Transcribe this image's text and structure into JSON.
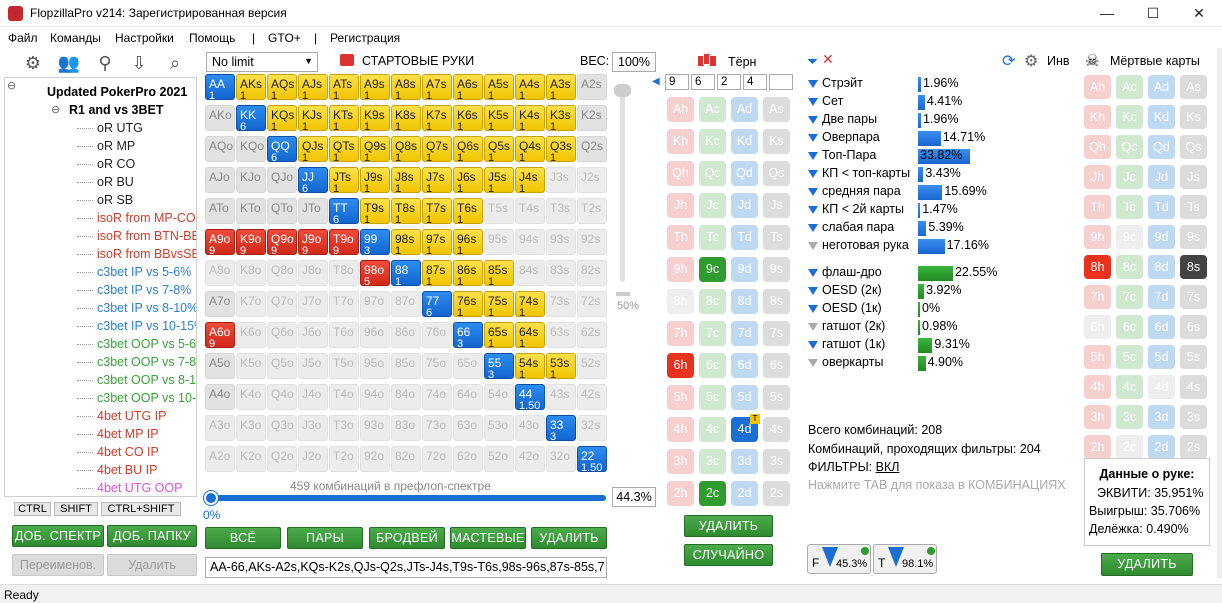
{
  "window": {
    "title": "FlopzillaPro v214: Зарегистрированная версия",
    "min": "—",
    "max": "☐",
    "close": "✕"
  },
  "menu": [
    "Файл",
    "Команды",
    "Настройки",
    "Помощь",
    "|",
    "GTO+",
    "|",
    "Регистрация"
  ],
  "tree": {
    "root": "Updated PokerPro 2021",
    "group": "R1 and vs 3BET",
    "items": [
      {
        "label": "oR UTG",
        "color": "#222"
      },
      {
        "label": "oR MP",
        "color": "#222"
      },
      {
        "label": "oR CO",
        "color": "#222"
      },
      {
        "label": "oR BU",
        "color": "#222"
      },
      {
        "label": "oR SB",
        "color": "#222"
      },
      {
        "label": "isoR from MP-CO",
        "color": "#d63a2a"
      },
      {
        "label": "isoR from BTN-BB",
        "color": "#d63a2a"
      },
      {
        "label": "isoR from BBvsSB",
        "color": "#d63a2a"
      },
      {
        "label": "c3bet IP vs 5-6%",
        "color": "#2a7fd6"
      },
      {
        "label": "c3bet IP vs 7-8%",
        "color": "#2a7fd6"
      },
      {
        "label": "c3bet IP vs 8-10%",
        "color": "#2a7fd6"
      },
      {
        "label": "c3bet IP vs 10-15%",
        "color": "#2a7fd6"
      },
      {
        "label": "c3bet OOP vs 5-6%",
        "color": "#3aa33a"
      },
      {
        "label": "c3bet OOP vs 7-8%",
        "color": "#3aa33a"
      },
      {
        "label": "c3bet OOP vs 8-10%",
        "color": "#3aa33a"
      },
      {
        "label": "c3bet OOP vs 10-15%",
        "color": "#3aa33a"
      },
      {
        "label": "4bet UTG IP",
        "color": "#d63a2a"
      },
      {
        "label": "4bet MP IP",
        "color": "#d63a2a"
      },
      {
        "label": "4bet CO IP",
        "color": "#d63a2a"
      },
      {
        "label": "4bet BU IP",
        "color": "#d63a2a"
      },
      {
        "label": "4bet UTG OOP",
        "color": "#e050e0"
      }
    ]
  },
  "keys": [
    "CTRL",
    "SHIFT",
    "CTRL+SHIFT"
  ],
  "left_buttons": {
    "add_range": "ДОБ. СПЕКТР",
    "add_folder": "ДОБ. ПАПКУ",
    "rename": "Переименов.",
    "delete": "Удалить"
  },
  "range": {
    "limit": "No limit",
    "title": "СТАРТОВЫЕ РУКИ",
    "weight_label": "ВЕС:",
    "weight": "100%",
    "slider_pct": "50%",
    "combos_text": "459 комбинаций в префлоп-спектре",
    "bottom_pct": "44.3%",
    "bottom_zero": "0%",
    "range_string": "AA-66,AKs-A2s,KQs-K2s,QJs-Q2s,JTs-J4s,T9s-T6s,98s-96s,87s-85s,7",
    "buttons": [
      "ВСЁ",
      "ПАРЫ",
      "БРОДВЕЙ",
      "МАСТЕВЫЕ",
      "УДАЛИТЬ"
    ]
  },
  "ranks": [
    "A",
    "K",
    "Q",
    "J",
    "T",
    "9",
    "8",
    "7",
    "6",
    "5",
    "4",
    "3",
    "2"
  ],
  "grid_rows": [
    "B1Y1Y1Y1Y1Y1Y1Y1Y1Y1Y1Y1G0",
    "GxB6Y1Y1Y1Y1Y1Y1Y1Y1Y1Y1G0",
    "GxGxB6Y1Y1Y1Y1Y1Y1Y1Y1Y1G0",
    "GxGxGxB6Y1Y1Y1Y1Y1Y1Y1E0E0",
    "GxGxGxGxB6Y1Y1Y1Y1E0E0E0E0",
    "R9R9R9R9R9B3Y1Y1Y1E0E0E0E0",
    "E0E0E0E0E0R5B1Y1Y1Y1E0E0E0",
    "GxE0E0E0E0E0E0B6Y1Y1Y1E0E0",
    "R9E0E0E0E0E0E0E0B3Y1Y1E0E0",
    "GxE0E0E0E0E0E0E0E0B3Y1Y1E0",
    "GxE0E0E0E0E0E0E0E0E0BxE0E0",
    "E0E0E0E0E0E0E0E0E0E0E0B3E0",
    "E0E0E0E0E0E0E0E0E0E0E0E0Bx"
  ],
  "weights_special": {
    "44": "1.50",
    "22": "1.50"
  },
  "board": {
    "title": "Тёрн",
    "inputs": [
      "9",
      "6",
      "2",
      "4",
      ""
    ],
    "delete": "УДАЛИТЬ",
    "random": "СЛУЧАЙНО"
  },
  "dead": {
    "title": "Мёртвые карты",
    "delete": "УДАЛИТЬ"
  },
  "stats_header": {
    "inv": "Инв"
  },
  "stats": [
    {
      "label": "Стрэйт",
      "pct": "1.96%",
      "v": 1.96,
      "c": "b"
    },
    {
      "label": "Сет",
      "pct": "4.41%",
      "v": 4.41,
      "c": "b"
    },
    {
      "label": "Две пары",
      "pct": "1.96%",
      "v": 1.96,
      "c": "b"
    },
    {
      "label": "Оверпара",
      "pct": "14.71%",
      "v": 14.71,
      "c": "b"
    },
    {
      "label": "Топ-Пара",
      "pct": "33.82%",
      "v": 33.82,
      "c": "b"
    },
    {
      "label": "КП < топ-карты",
      "pct": "3.43%",
      "v": 3.43,
      "c": "b"
    },
    {
      "label": "средняя пара",
      "pct": "15.69%",
      "v": 15.69,
      "c": "b"
    },
    {
      "label": "КП < 2й карты",
      "pct": "1.47%",
      "v": 1.47,
      "c": "b"
    },
    {
      "label": "слабая пара",
      "pct": "5.39%",
      "v": 5.39,
      "c": "b"
    },
    {
      "label": "неготовая рука",
      "pct": "17.16%",
      "v": 17.16,
      "c": "b",
      "grey": true
    }
  ],
  "draws": [
    {
      "label": "флаш-дро",
      "pct": "22.55%",
      "v": 22.55
    },
    {
      "label": "OESD (2к)",
      "pct": "3.92%",
      "v": 3.92
    },
    {
      "label": "OESD (1к)",
      "pct": "0%",
      "v": 0
    },
    {
      "label": "гатшот (2к)",
      "pct": "0.98%",
      "v": 0.98,
      "grey": true
    },
    {
      "label": "гатшот (1к)",
      "pct": "9.31%",
      "v": 9.31
    },
    {
      "label": "оверкарты",
      "pct": "4.90%",
      "v": 4.9,
      "grey": true
    }
  ],
  "summary": {
    "total": "Всего комбинаций: 208",
    "passing": "Комбинаций, проходящих фильтры: 204",
    "filters_label": "ФИЛЬТРЫ:",
    "filters_value": "ВКЛ",
    "hint": "Нажмите TAB для показа в КОМБИНАЦИЯХ",
    "f_pct": "45.3%",
    "t_pct": "98.1%",
    "f": "F",
    "t": "T"
  },
  "hand": {
    "title": "Данные о руке:",
    "equity": "ЭКВИТИ: 35.951%",
    "win": "Выигрыш: 35.706%",
    "tie": "Делёжка: 0.490%"
  },
  "status": "Ready"
}
